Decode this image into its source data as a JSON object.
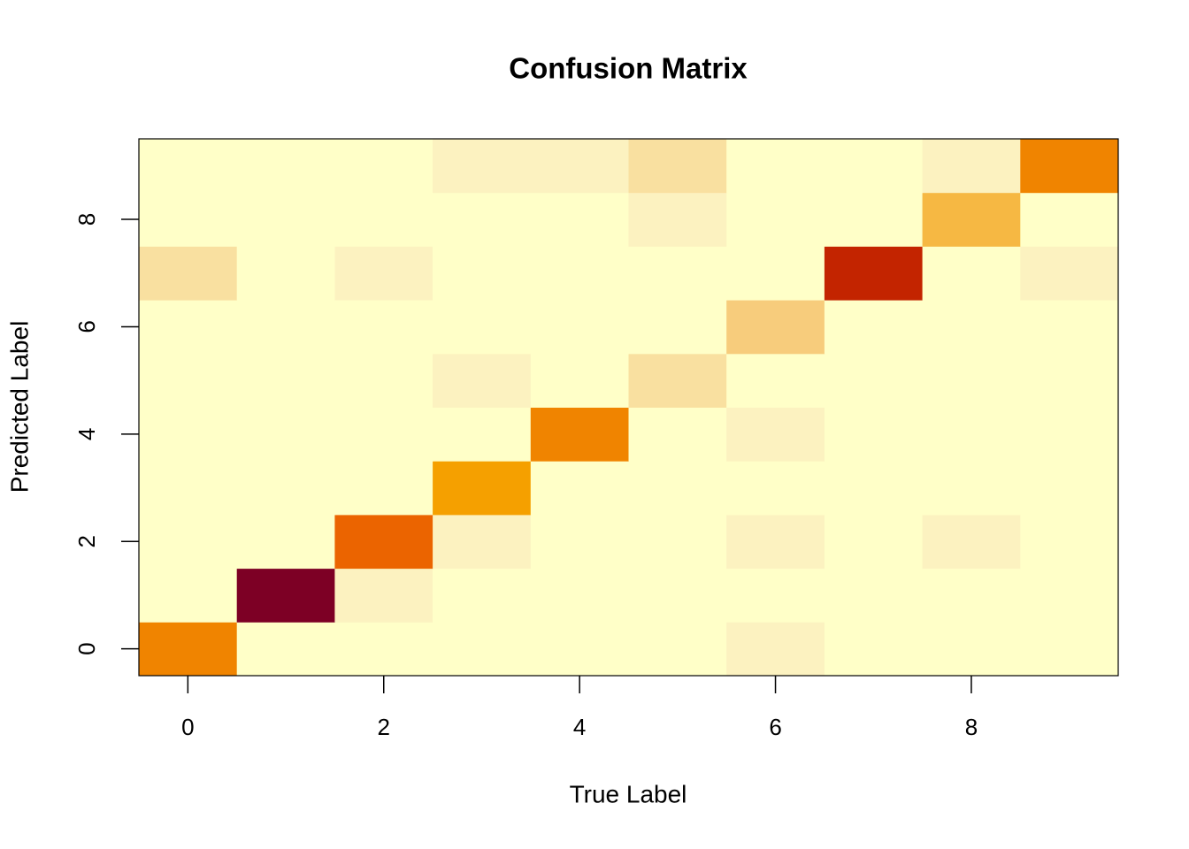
{
  "chart_data": {
    "type": "heatmap",
    "title": "Confusion Matrix",
    "x_label": "True Label",
    "y_label": "Predicted Label",
    "xlim": [
      -0.5,
      9.5
    ],
    "ylim": [
      -0.5,
      9.5
    ],
    "xticks": [
      0,
      2,
      4,
      6,
      8
    ],
    "yticks": [
      0,
      2,
      4,
      6,
      8
    ],
    "x": [
      0,
      1,
      2,
      3,
      4,
      5,
      6,
      7,
      8,
      9
    ],
    "y": [
      0,
      1,
      2,
      3,
      4,
      5,
      6,
      7,
      8,
      9
    ],
    "z": [
      [
        8,
        0,
        0,
        0,
        0,
        0,
        1,
        0,
        0,
        0
      ],
      [
        0,
        14,
        1,
        0,
        0,
        0,
        0,
        0,
        0,
        0
      ],
      [
        0,
        0,
        10,
        1,
        0,
        0,
        1,
        0,
        1,
        0
      ],
      [
        0,
        0,
        0,
        7,
        0,
        0,
        0,
        0,
        0,
        0
      ],
      [
        0,
        0,
        0,
        0,
        8,
        0,
        1,
        0,
        0,
        0
      ],
      [
        0,
        0,
        0,
        1,
        0,
        2,
        0,
        0,
        0,
        0
      ],
      [
        0,
        0,
        0,
        0,
        0,
        0,
        3,
        0,
        0,
        0
      ],
      [
        2,
        0,
        1,
        0,
        0,
        0,
        0,
        12,
        0,
        1
      ],
      [
        0,
        0,
        0,
        0,
        0,
        1,
        0,
        0,
        5,
        0
      ],
      [
        0,
        0,
        0,
        1,
        1,
        2,
        0,
        0,
        1,
        8
      ]
    ],
    "palette": [
      "#FFFFC8",
      "#FCF2C0",
      "#F9E0A0",
      "#F7CC7C",
      "#F6C260",
      "#F6B843",
      "#F5AC20",
      "#F5A000",
      "#F08400",
      "#EE7400",
      "#EB6400",
      "#D84400",
      "#C32400",
      "#A01010",
      "#7D0025"
    ]
  }
}
